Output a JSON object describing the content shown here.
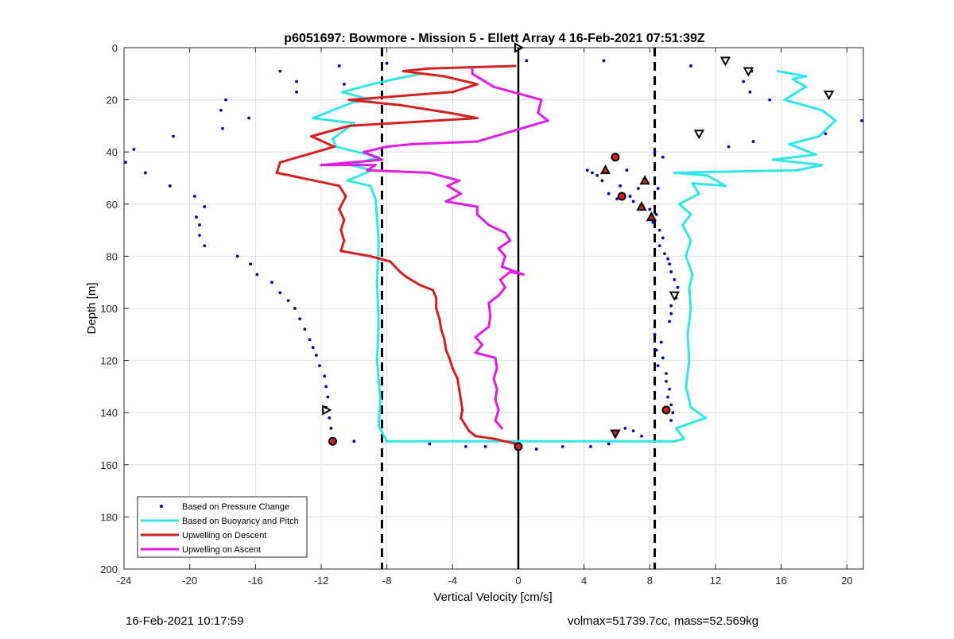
{
  "footer": {
    "timestamp": "16-Feb-2021 10:17:59",
    "info": "volmax=51739.7cc, mass=52.569kg"
  },
  "chart_data": {
    "type": "scatter",
    "title": "p6051697: Bowmore - Mission 5 - Ellett Array 4 16-Feb-2021 07:51:39Z",
    "xlabel": "Vertical Velocity [cm/s]",
    "ylabel": "Depth [m]",
    "xlim": [
      -24,
      21
    ],
    "ylim": [
      0,
      200
    ],
    "y_reversed": true,
    "grid": true,
    "legend_position": "bottom-left",
    "x_ticks": [
      -24,
      -20,
      -16,
      -12,
      -8,
      -4,
      0,
      4,
      8,
      12,
      16,
      20
    ],
    "y_ticks": [
      0,
      20,
      40,
      60,
      80,
      100,
      120,
      140,
      160,
      180,
      200
    ],
    "reference_lines": {
      "dashed_x": [
        -8.3,
        8.3
      ],
      "solid_x": [
        0
      ],
      "color": "#000000"
    },
    "series": [
      {
        "name": "Based on Pressure Change",
        "style": "dots",
        "color": "#0000b4",
        "points": [
          [
            -10.9,
            7
          ],
          [
            -14.5,
            9
          ],
          [
            -13.5,
            13
          ],
          [
            -13.5,
            17
          ],
          [
            -10.6,
            14
          ],
          [
            -8,
            6
          ],
          [
            0.5,
            5
          ],
          [
            5.2,
            5
          ],
          [
            -17.8,
            20
          ],
          [
            -18.1,
            24
          ],
          [
            -16.4,
            27
          ],
          [
            -18,
            31
          ],
          [
            -21,
            34
          ],
          [
            -23.4,
            39
          ],
          [
            -23.9,
            44
          ],
          [
            -22.7,
            48
          ],
          [
            -21.2,
            53
          ],
          [
            -19.7,
            57
          ],
          [
            -19.1,
            61
          ],
          [
            -19.6,
            65
          ],
          [
            -19.4,
            68
          ],
          [
            -19.4,
            72
          ],
          [
            -19.1,
            76
          ],
          [
            -17.1,
            80
          ],
          [
            -16.3,
            83
          ],
          [
            -15.9,
            87
          ],
          [
            -15,
            90
          ],
          [
            -14.5,
            94
          ],
          [
            -14,
            97
          ],
          [
            -13.6,
            100
          ],
          [
            -13.3,
            104
          ],
          [
            -13,
            108
          ],
          [
            -12.7,
            112
          ],
          [
            -12.5,
            115
          ],
          [
            -12.3,
            118
          ],
          [
            -12.1,
            122
          ],
          [
            -11.8,
            126
          ],
          [
            -11.7,
            130
          ],
          [
            -11.6,
            134
          ],
          [
            -11.7,
            138
          ],
          [
            -11.5,
            142
          ],
          [
            -11.4,
            146
          ],
          [
            -11.2,
            151
          ],
          [
            -10,
            151
          ],
          [
            14.2,
            9
          ],
          [
            13.7,
            13
          ],
          [
            14.1,
            17
          ],
          [
            15.3,
            20
          ],
          [
            18.7,
            33
          ],
          [
            20.9,
            28
          ],
          [
            14.3,
            36
          ],
          [
            12.8,
            38
          ],
          [
            10.5,
            7
          ],
          [
            8.3,
            40
          ],
          [
            8.8,
            42
          ],
          [
            6.6,
            47
          ],
          [
            4.2,
            47
          ],
          [
            4.5,
            48
          ],
          [
            4.8,
            49
          ],
          [
            5.1,
            51
          ],
          [
            6.2,
            53
          ],
          [
            7.3,
            54
          ],
          [
            8.5,
            54
          ],
          [
            5.5,
            56
          ],
          [
            6,
            58
          ],
          [
            6.8,
            57
          ],
          [
            7,
            59
          ],
          [
            8,
            62
          ],
          [
            8.4,
            64
          ],
          [
            8.2,
            67
          ],
          [
            8.6,
            70
          ],
          [
            8.8,
            73
          ],
          [
            8.6,
            76
          ],
          [
            8.9,
            79
          ],
          [
            9.1,
            81
          ],
          [
            9.2,
            83
          ],
          [
            9.3,
            86
          ],
          [
            9.5,
            89
          ],
          [
            9.7,
            92
          ],
          [
            9.6,
            96
          ],
          [
            9.3,
            99
          ],
          [
            9.3,
            102
          ],
          [
            9.2,
            105
          ],
          [
            8.3,
            110
          ],
          [
            8.7,
            113
          ],
          [
            8.4,
            116
          ],
          [
            8.8,
            119
          ],
          [
            8.5,
            122
          ],
          [
            9,
            125
          ],
          [
            9,
            128
          ],
          [
            9.2,
            131
          ],
          [
            9.1,
            134
          ],
          [
            9.3,
            137
          ],
          [
            9.4,
            140
          ],
          [
            9.3,
            143
          ],
          [
            6.5,
            146
          ],
          [
            7,
            147
          ],
          [
            7.5,
            149
          ],
          [
            5.5,
            152
          ],
          [
            4.4,
            153
          ],
          [
            2.7,
            153
          ],
          [
            1.1,
            154
          ],
          [
            -2,
            153
          ],
          [
            -3.2,
            153
          ],
          [
            -5.4,
            152
          ]
        ]
      },
      {
        "name": "Based on Buoyancy and Pitch",
        "style": "line",
        "color": "#33e6e6",
        "segments": [
          [
            [
              -5.9,
              10
            ],
            [
              -7.5,
              12
            ],
            [
              -8.9,
              14
            ],
            [
              -10.7,
              17
            ],
            [
              -9,
              20
            ],
            [
              -10.1,
              21
            ],
            [
              -12.5,
              27
            ],
            [
              -10,
              29
            ],
            [
              -11.3,
              35
            ],
            [
              -11.1,
              38
            ],
            [
              -8.5,
              42
            ],
            [
              -10.2,
              45
            ],
            [
              -8.9,
              47
            ],
            [
              -10.4,
              51
            ],
            [
              -9,
              53
            ],
            [
              -8.7,
              58
            ],
            [
              -8.6,
              65
            ],
            [
              -8.5,
              75
            ],
            [
              -8.6,
              90
            ],
            [
              -8.5,
              105
            ],
            [
              -8.6,
              120
            ],
            [
              -8.4,
              135
            ],
            [
              -8.5,
              145
            ],
            [
              -8,
              151
            ],
            [
              -3,
              151
            ],
            [
              3,
              151
            ],
            [
              9.5,
              151
            ]
          ],
          [
            [
              9.5,
              151
            ],
            [
              10.1,
              150
            ],
            [
              9.6,
              146
            ],
            [
              11.4,
              142
            ],
            [
              10.5,
              138
            ],
            [
              10.2,
              130
            ],
            [
              10.4,
              120
            ],
            [
              10.3,
              110
            ],
            [
              10.5,
              100
            ],
            [
              10.4,
              92
            ],
            [
              10.6,
              87
            ],
            [
              10.2,
              80
            ],
            [
              10.5,
              74
            ],
            [
              10,
              68
            ],
            [
              10.5,
              64
            ],
            [
              9.8,
              60
            ],
            [
              11,
              56
            ],
            [
              10.6,
              52
            ],
            [
              12.6,
              53
            ],
            [
              11.5,
              49
            ],
            [
              9.5,
              48
            ],
            [
              17,
              47
            ],
            [
              18.5,
              45
            ],
            [
              15.5,
              43
            ],
            [
              18.1,
              41
            ],
            [
              16.5,
              37
            ],
            [
              18.3,
              34
            ],
            [
              19.3,
              28
            ],
            [
              18.5,
              24
            ],
            [
              16.2,
              20
            ],
            [
              17.5,
              15
            ],
            [
              16.7,
              12
            ],
            [
              17.5,
              11
            ],
            [
              15.8,
              9
            ]
          ]
        ]
      },
      {
        "name": "Upwelling on Descent",
        "style": "line",
        "color": "#d42020",
        "points": [
          [
            -0.2,
            7
          ],
          [
            -5.5,
            8
          ],
          [
            -7,
            9
          ],
          [
            -4.5,
            11
          ],
          [
            -2.5,
            14
          ],
          [
            -4,
            17
          ],
          [
            -10.3,
            20
          ],
          [
            -7.2,
            22
          ],
          [
            -4.2,
            25
          ],
          [
            -2.5,
            27
          ],
          [
            -10.3,
            30
          ],
          [
            -12.6,
            34
          ],
          [
            -11.2,
            38
          ],
          [
            -14.5,
            44
          ],
          [
            -14.7,
            48
          ],
          [
            -10.9,
            53
          ],
          [
            -10.5,
            57
          ],
          [
            -10.9,
            62
          ],
          [
            -10.6,
            66
          ],
          [
            -10.8,
            70
          ],
          [
            -10.6,
            74
          ],
          [
            -10.8,
            78
          ],
          [
            -9,
            80
          ],
          [
            -7.8,
            82
          ],
          [
            -7.5,
            84
          ],
          [
            -7.2,
            86
          ],
          [
            -6.8,
            88
          ],
          [
            -6,
            91
          ],
          [
            -5.2,
            93
          ],
          [
            -5,
            96
          ],
          [
            -5,
            100
          ],
          [
            -4.8,
            104
          ],
          [
            -4.7,
            108
          ],
          [
            -4.5,
            112
          ],
          [
            -4.4,
            116
          ],
          [
            -4.2,
            119
          ],
          [
            -4,
            123
          ],
          [
            -3.7,
            127
          ],
          [
            -3.6,
            131
          ],
          [
            -3.5,
            135
          ],
          [
            -3.4,
            139
          ],
          [
            -3.5,
            142
          ],
          [
            -3.2,
            145
          ],
          [
            -3,
            147
          ],
          [
            -2.6,
            149
          ],
          [
            -1.5,
            150
          ],
          [
            -0.1,
            152
          ]
        ]
      },
      {
        "name": "Upwelling on Ascent",
        "style": "line",
        "color": "#e01de0",
        "points": [
          [
            -1,
            146
          ],
          [
            -1.4,
            143
          ],
          [
            -1.2,
            139
          ],
          [
            -1.4,
            135
          ],
          [
            -1.3,
            131
          ],
          [
            -1.5,
            127
          ],
          [
            -1.3,
            123
          ],
          [
            -1.4,
            119
          ],
          [
            -2.6,
            117
          ],
          [
            -2.2,
            114
          ],
          [
            -2.6,
            111
          ],
          [
            -1.8,
            107
          ],
          [
            -1.7,
            103
          ],
          [
            -1.8,
            98
          ],
          [
            -1.2,
            95
          ],
          [
            -0.8,
            92
          ],
          [
            -1.1,
            89
          ],
          [
            -0.5,
            86
          ],
          [
            0.3,
            87
          ],
          [
            -1,
            84
          ],
          [
            -0.8,
            80
          ],
          [
            -1.2,
            77
          ],
          [
            -0.5,
            74
          ],
          [
            -0.8,
            71
          ],
          [
            -1.8,
            68
          ],
          [
            -2.5,
            64
          ],
          [
            -2.5,
            61
          ],
          [
            -4.4,
            59
          ],
          [
            -3.5,
            56
          ],
          [
            -4.3,
            53
          ],
          [
            -3.6,
            51
          ],
          [
            -5.4,
            48
          ],
          [
            -9.2,
            47
          ],
          [
            -8.7,
            45
          ],
          [
            -12,
            45
          ],
          [
            -8.3,
            43
          ],
          [
            -9.4,
            40
          ],
          [
            -8,
            38
          ],
          [
            -6.5,
            37
          ],
          [
            -2.5,
            36
          ],
          [
            1.8,
            28
          ],
          [
            1.2,
            25
          ],
          [
            1.4,
            20
          ],
          [
            -1.5,
            15
          ],
          [
            -2.8,
            10
          ],
          [
            -2.8,
            8
          ]
        ]
      },
      {
        "name": "down-triangle markers",
        "style": "marker",
        "color": "#000000",
        "marker": "triangle-down",
        "points": [
          [
            12.6,
            5
          ],
          [
            14,
            9
          ],
          [
            18.9,
            18
          ],
          [
            11,
            33
          ],
          [
            9.5,
            95
          ],
          [
            5.9,
            148
          ]
        ]
      },
      {
        "name": "up-triangle markers",
        "style": "marker",
        "color": "#000000",
        "marker": "triangle-up",
        "points": [
          [
            5.3,
            47
          ],
          [
            7.7,
            51
          ],
          [
            7.5,
            61
          ],
          [
            8.1,
            65
          ]
        ]
      },
      {
        "name": "right-triangle markers",
        "style": "marker",
        "color": "#000000",
        "marker": "triangle-right",
        "points": [
          [
            0,
            0
          ],
          [
            -11.7,
            139
          ]
        ]
      },
      {
        "name": "circle markers",
        "style": "marker",
        "color": "#000000",
        "marker": "circle",
        "points": [
          [
            5.9,
            42
          ],
          [
            6.3,
            57
          ],
          [
            9,
            139
          ],
          [
            -11.3,
            151
          ],
          [
            0,
            153
          ]
        ]
      }
    ]
  }
}
